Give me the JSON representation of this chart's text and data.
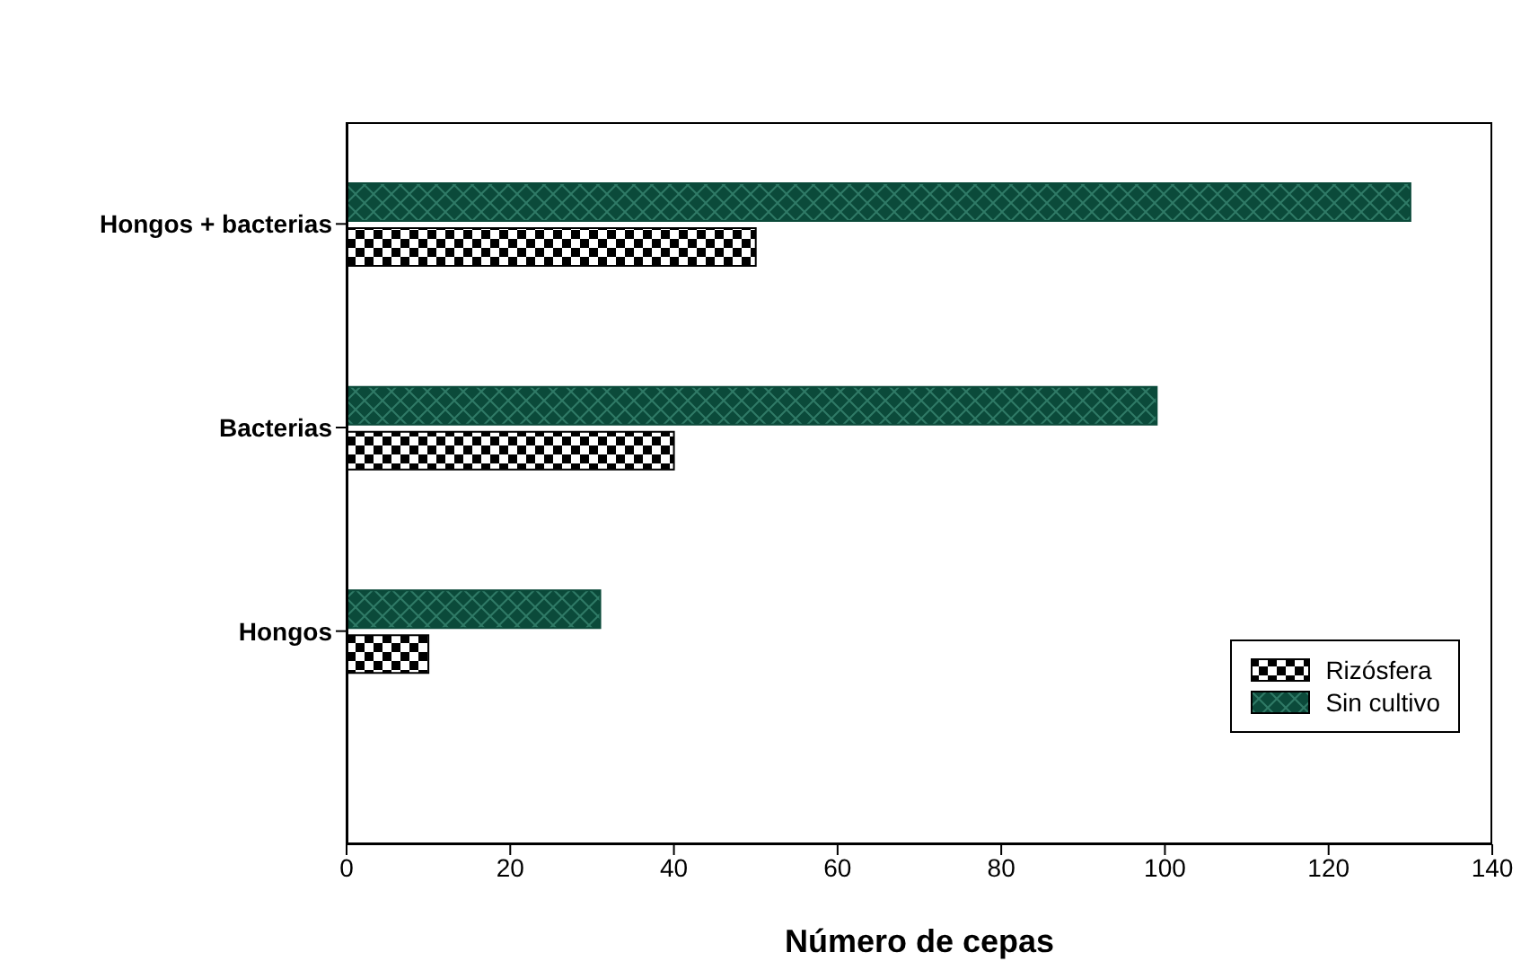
{
  "chart_data": {
    "type": "bar",
    "orientation": "horizontal",
    "xlabel": "Número de cepas",
    "categories": [
      "Hongos + bacterias",
      "Bacterias",
      "Hongos"
    ],
    "series": [
      {
        "name": "Rizósfera",
        "color": "#000000",
        "values": [
          50,
          40,
          10
        ]
      },
      {
        "name": "Sin cultivo",
        "color": "#0b4a3a",
        "values": [
          130,
          99,
          31
        ]
      }
    ],
    "xlim": [
      0,
      140
    ],
    "xticks": [
      0,
      20,
      40,
      60,
      80,
      100,
      120,
      140
    ],
    "grid": false,
    "legend": "bottom right"
  }
}
